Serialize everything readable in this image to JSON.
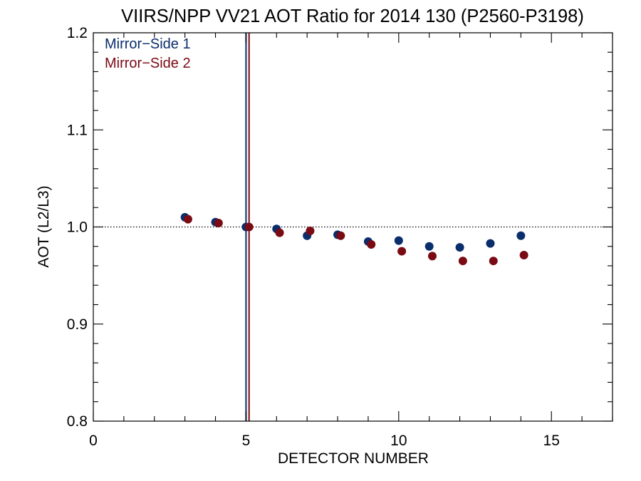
{
  "chart_data": {
    "type": "scatter",
    "title": "VIIRS/NPP VV21 AOT Ratio for 2014 130 (P2560-P3198)",
    "xlabel": "DETECTOR NUMBER",
    "ylabel": "AOT (L2/L3)",
    "xlim": [
      0,
      17
    ],
    "ylim": [
      0.8,
      1.2
    ],
    "xticks": [
      0,
      5,
      10,
      15
    ],
    "xtick_labels": [
      "0",
      "5",
      "10",
      "15"
    ],
    "yticks": [
      0.8,
      0.9,
      1.0,
      1.1,
      1.2
    ],
    "ytick_labels": [
      "0.8",
      "0.9",
      "1.0",
      "1.1",
      "1.2"
    ],
    "x_minor_step": 1,
    "y_minor_step": 0.02,
    "grid": false,
    "legend_position": "top-left",
    "reference_line": {
      "y": 1.0,
      "style": "dotted"
    },
    "series": [
      {
        "name": "Mirror−Side 1",
        "color": "#0a2d6b",
        "vline_x": 5.0,
        "points": [
          [
            3.0,
            1.01
          ],
          [
            4.0,
            1.005
          ],
          [
            5.0,
            1.0
          ],
          [
            6.0,
            0.998
          ],
          [
            7.0,
            0.991
          ],
          [
            8.0,
            0.992
          ],
          [
            9.0,
            0.985
          ],
          [
            10.0,
            0.986
          ],
          [
            11.0,
            0.98
          ],
          [
            12.0,
            0.979
          ],
          [
            13.0,
            0.983
          ],
          [
            14.0,
            0.991
          ]
        ]
      },
      {
        "name": "Mirror−Side 2",
        "color": "#7a0a14",
        "vline_x": 5.1,
        "points": [
          [
            3.1,
            1.008
          ],
          [
            4.1,
            1.004
          ],
          [
            5.1,
            1.0
          ],
          [
            6.1,
            0.994
          ],
          [
            7.1,
            0.996
          ],
          [
            8.1,
            0.991
          ],
          [
            9.1,
            0.982
          ],
          [
            10.1,
            0.975
          ],
          [
            11.1,
            0.97
          ],
          [
            12.1,
            0.965
          ],
          [
            13.1,
            0.965
          ],
          [
            14.1,
            0.971
          ]
        ]
      }
    ]
  }
}
